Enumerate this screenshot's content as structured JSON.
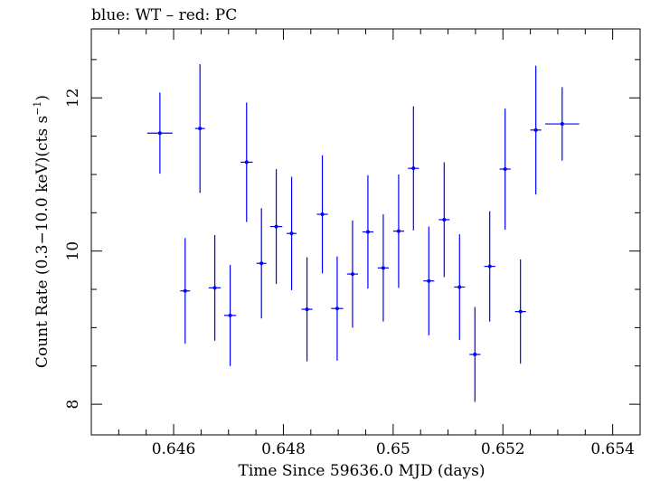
{
  "chart_data": {
    "type": "scatter",
    "title": "blue: WT – red: PC",
    "xlabel": "Time Since 59636.0 MJD (days)",
    "ylabel_main": "Count Rate (0.3−10.0 keV)(cts s",
    "ylabel_sup": "−1",
    "ylabel_close": ")",
    "xlim": [
      0.6445,
      0.6545
    ],
    "ylim": [
      7.6,
      12.9
    ],
    "xticks": [
      0.646,
      0.648,
      0.65,
      0.652,
      0.654
    ],
    "xtick_labels": [
      "0.646",
      "0.648",
      "0.65",
      "0.652",
      "0.654"
    ],
    "yticks": [
      8,
      10,
      12
    ],
    "ytick_labels": [
      "8",
      "10",
      "12"
    ],
    "grid": false,
    "colors": {
      "series": "#0000ff",
      "axes": "#000000"
    },
    "series": [
      {
        "points": [
          {
            "x": 0.64575,
            "xerr": 0.00023,
            "y": 11.54,
            "yerr": 0.53
          },
          {
            "x": 0.64621,
            "xerr": 9e-05,
            "y": 9.48,
            "yerr": 0.69
          },
          {
            "x": 0.64648,
            "xerr": 9e-05,
            "y": 11.6,
            "yerr": 0.84
          },
          {
            "x": 0.64675,
            "xerr": 0.00011,
            "y": 9.52,
            "yerr": 0.69
          },
          {
            "x": 0.64703,
            "xerr": 0.00011,
            "y": 9.16,
            "yerr": 0.66
          },
          {
            "x": 0.64733,
            "xerr": 0.00011,
            "y": 11.16,
            "yerr": 0.78
          },
          {
            "x": 0.6476,
            "xerr": 9e-05,
            "y": 9.84,
            "yerr": 0.72
          },
          {
            "x": 0.64787,
            "xerr": 0.00011,
            "y": 10.32,
            "yerr": 0.75
          },
          {
            "x": 0.64815,
            "xerr": 9e-05,
            "y": 10.23,
            "yerr": 0.74
          },
          {
            "x": 0.64843,
            "xerr": 0.0001,
            "y": 9.24,
            "yerr": 0.68
          },
          {
            "x": 0.64871,
            "xerr": 0.0001,
            "y": 10.48,
            "yerr": 0.77
          },
          {
            "x": 0.64898,
            "xerr": 0.00011,
            "y": 9.25,
            "yerr": 0.68
          },
          {
            "x": 0.64926,
            "xerr": 0.0001,
            "y": 9.7,
            "yerr": 0.7
          },
          {
            "x": 0.64954,
            "xerr": 0.0001,
            "y": 10.25,
            "yerr": 0.74
          },
          {
            "x": 0.64982,
            "xerr": 0.0001,
            "y": 9.78,
            "yerr": 0.7
          },
          {
            "x": 0.6501,
            "xerr": 0.0001,
            "y": 10.26,
            "yerr": 0.74
          },
          {
            "x": 0.65037,
            "xerr": 0.0001,
            "y": 11.08,
            "yerr": 0.81
          },
          {
            "x": 0.65065,
            "xerr": 0.0001,
            "y": 9.61,
            "yerr": 0.71
          },
          {
            "x": 0.65093,
            "xerr": 0.0001,
            "y": 10.41,
            "yerr": 0.75
          },
          {
            "x": 0.65121,
            "xerr": 0.0001,
            "y": 9.53,
            "yerr": 0.69
          },
          {
            "x": 0.65149,
            "xerr": 0.0001,
            "y": 8.65,
            "yerr": 0.62
          },
          {
            "x": 0.65176,
            "xerr": 0.0001,
            "y": 9.8,
            "yerr": 0.72
          },
          {
            "x": 0.65204,
            "xerr": 0.0001,
            "y": 11.07,
            "yerr": 0.79
          },
          {
            "x": 0.65232,
            "xerr": 0.0001,
            "y": 9.21,
            "yerr": 0.68
          },
          {
            "x": 0.6526,
            "xerr": 0.0001,
            "y": 11.58,
            "yerr": 0.84
          },
          {
            "x": 0.65308,
            "xerr": 0.00031,
            "y": 11.66,
            "yerr": 0.48
          }
        ]
      }
    ]
  }
}
